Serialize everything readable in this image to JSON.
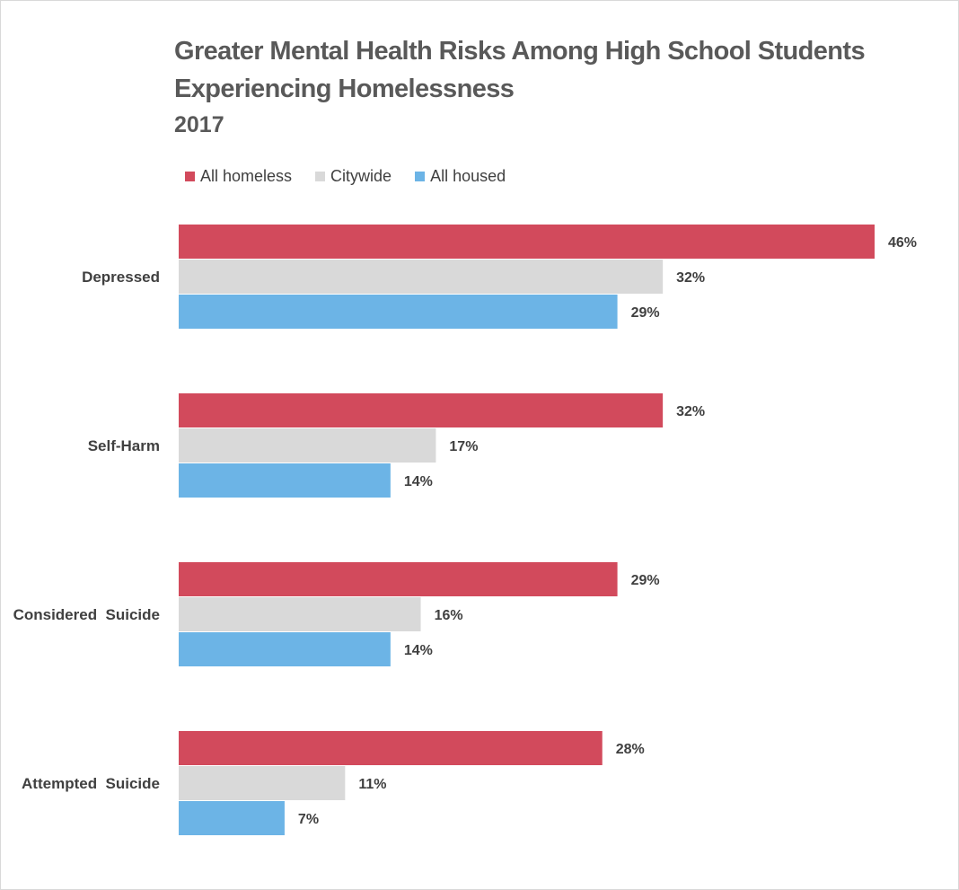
{
  "colors": {
    "all_homeless": "#d24a5c",
    "citywide": "#d9d9d9",
    "all_housed": "#6cb4e6"
  },
  "chart_data": {
    "type": "bar",
    "orientation": "horizontal",
    "title": "Greater Mental Health Risks Among High School Students",
    "title_line2": "Experiencing Homelessness",
    "subtitle": "2017",
    "categories": [
      "Depressed",
      "Self-Harm",
      "Considered  Suicide",
      "Attempted  Suicide"
    ],
    "series": [
      {
        "name": "All homeless",
        "color": "#d24a5c",
        "values": [
          46,
          32,
          29,
          28
        ],
        "labels": [
          "46%",
          "32%",
          "29%",
          "28%"
        ]
      },
      {
        "name": "Citywide",
        "color": "#d9d9d9",
        "values": [
          32,
          17,
          16,
          11
        ],
        "labels": [
          "32%",
          "17%",
          "16%",
          "11%"
        ]
      },
      {
        "name": "All housed",
        "color": "#6cb4e6",
        "values": [
          29,
          14,
          14,
          7
        ],
        "labels": [
          "29%",
          "14%",
          "14%",
          "7%"
        ]
      }
    ],
    "value_unit": "%",
    "xlim": [
      0,
      46
    ],
    "legend_position": "top-left",
    "grid": false
  }
}
